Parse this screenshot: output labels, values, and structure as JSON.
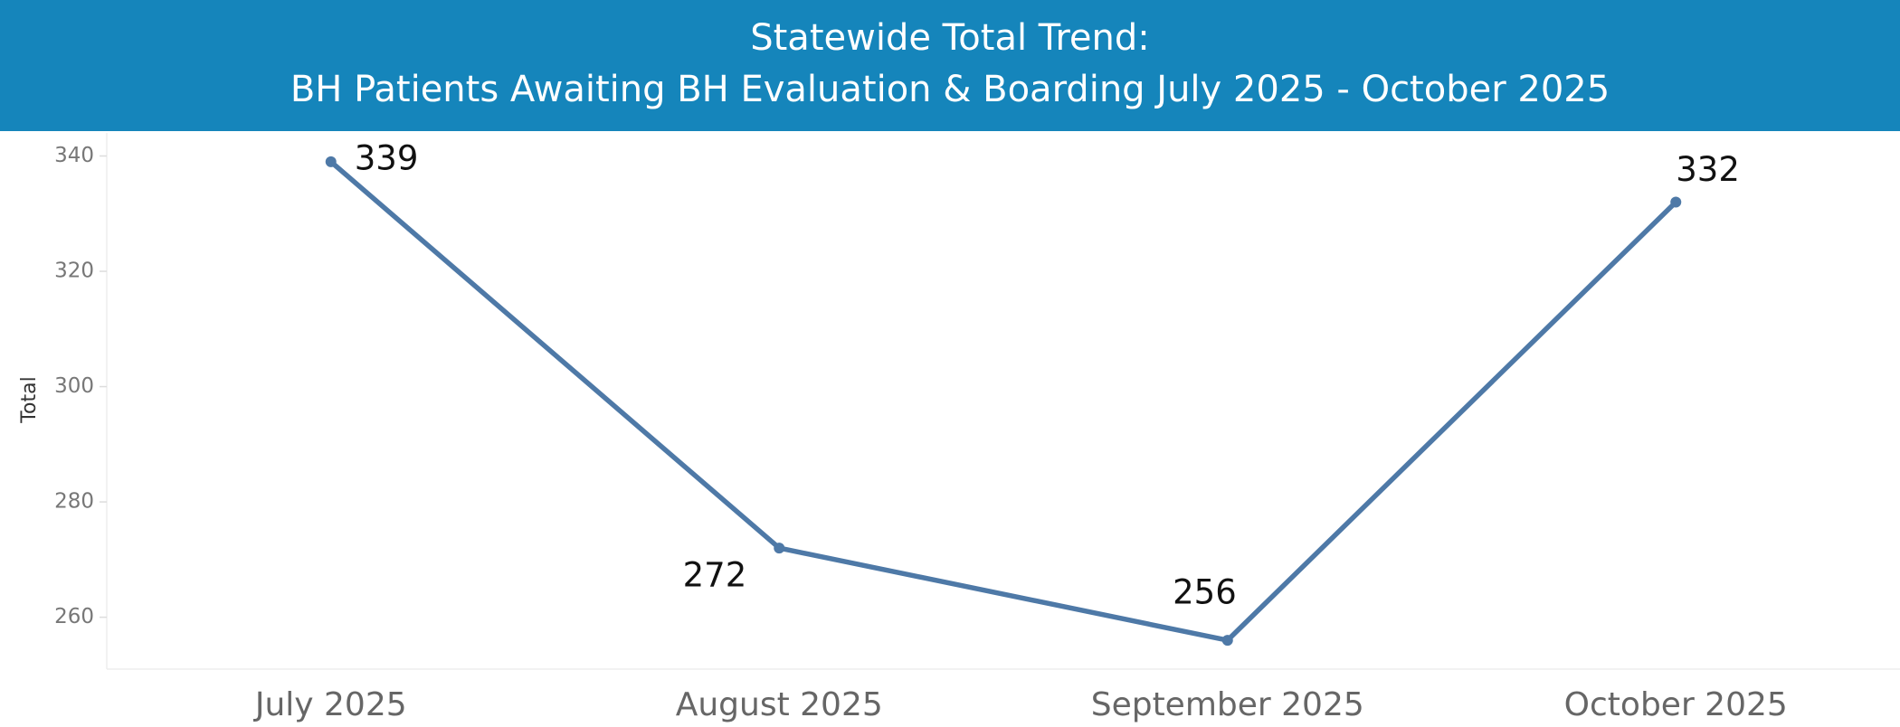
{
  "chart_data": {
    "type": "line",
    "title": "Statewide Total Trend:",
    "subtitle": "BH Patients Awaiting BH Evaluation & Boarding July 2025 - October 2025",
    "y_label": "Total",
    "categories": [
      "July 2025",
      "August 2025",
      "September 2025",
      "October 2025"
    ],
    "values": [
      339,
      272,
      256,
      332
    ],
    "color": "#4e79a7",
    "ylim": [
      251,
      344
    ],
    "yticks": [
      260,
      280,
      300,
      320,
      340
    ],
    "grid": false
  }
}
